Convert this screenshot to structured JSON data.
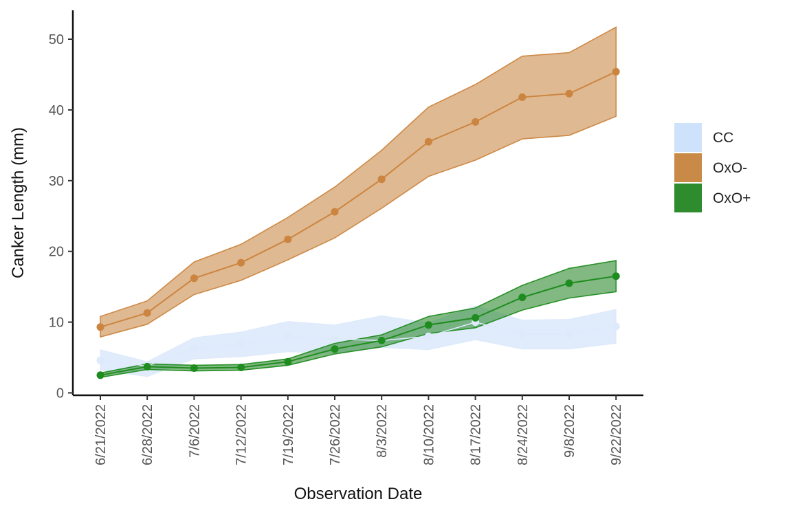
{
  "chart_data": {
    "type": "line",
    "xlabel": "Observation Date",
    "ylabel": "Canker Length (mm)",
    "ylim": [
      0,
      52
    ],
    "yticks": [
      0,
      10,
      20,
      30,
      40,
      50
    ],
    "grid": false,
    "legend_position": "right",
    "categories": [
      "6/21/2022",
      "6/28/2022",
      "7/6/2022",
      "7/12/2022",
      "7/19/2022",
      "7/26/2022",
      "8/3/2022",
      "8/10/2022",
      "8/17/2022",
      "8/24/2022",
      "9/8/2022",
      "9/22/2022"
    ],
    "series": [
      {
        "name": "CC",
        "color": "#cfe2fb",
        "point_color": "#dceafc",
        "values": [
          4.6,
          3.8,
          6.3,
          6.9,
          8.0,
          7.6,
          7.4,
          8.0,
          10.0,
          8.3,
          8.3,
          9.4
        ],
        "lower": [
          3.2,
          2.3,
          4.8,
          5.1,
          5.8,
          5.6,
          6.4,
          6.1,
          7.5,
          6.2,
          6.2,
          7.0
        ],
        "upper": [
          6.1,
          4.4,
          7.8,
          8.6,
          10.1,
          9.6,
          10.9,
          9.9,
          12.3,
          10.3,
          10.4,
          11.8
        ]
      },
      {
        "name": "OxO-",
        "color": "#c98a48",
        "point_color": "#cc8540",
        "values": [
          9.3,
          11.3,
          16.2,
          18.4,
          21.7,
          25.6,
          30.2,
          35.5,
          38.3,
          41.8,
          42.3,
          45.4
        ],
        "lower": [
          7.9,
          9.7,
          13.9,
          15.9,
          18.8,
          21.9,
          26.1,
          30.6,
          32.9,
          35.9,
          36.4,
          39.1
        ],
        "upper": [
          10.8,
          13.0,
          18.5,
          21.0,
          24.8,
          29.1,
          34.3,
          40.4,
          43.6,
          47.6,
          48.1,
          51.7
        ]
      },
      {
        "name": "OxO+",
        "color": "#2e8b2e",
        "point_color": "#1f8c1f",
        "values": [
          2.5,
          3.7,
          3.5,
          3.6,
          4.4,
          6.2,
          7.4,
          9.6,
          10.6,
          13.5,
          15.5,
          16.5
        ],
        "lower": [
          2.2,
          3.3,
          3.1,
          3.2,
          3.9,
          5.5,
          6.5,
          8.4,
          9.2,
          11.7,
          13.4,
          14.3
        ],
        "upper": [
          2.8,
          4.1,
          3.9,
          4.0,
          4.8,
          7.0,
          8.2,
          10.8,
          12.0,
          15.2,
          17.6,
          18.7
        ]
      }
    ]
  }
}
